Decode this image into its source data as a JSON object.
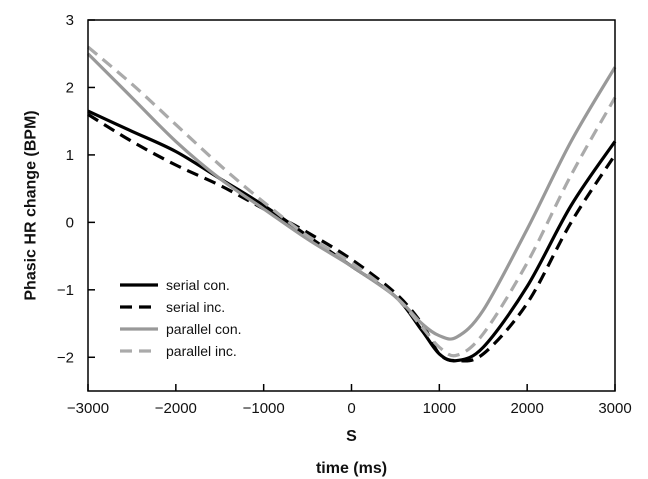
{
  "chart_data": {
    "type": "line",
    "title": "",
    "xlabel": "time (ms)",
    "xmarker": "S",
    "ylabel": "Phasic HR change (BPM)",
    "xlim": [
      -3000,
      3000
    ],
    "ylim": [
      -2.5,
      3
    ],
    "xticks": [
      -3000,
      -2000,
      -1000,
      0,
      1000,
      2000,
      3000
    ],
    "xtick_labels": [
      "−3000",
      "−2000",
      "−1000",
      "0",
      "1000",
      "2000",
      "3000"
    ],
    "yticks": [
      -2,
      -1,
      0,
      1,
      2,
      3
    ],
    "ytick_labels": [
      "−2",
      "−1",
      "0",
      "1",
      "2",
      "3"
    ],
    "grid": false,
    "legend_position": "bottom-left",
    "series": [
      {
        "name": "serial con.",
        "color": "#000000",
        "dash": "solid",
        "x": [
          -3000,
          -2500,
          -2000,
          -1500,
          -1000,
          -500,
          0,
          500,
          800,
          1000,
          1200,
          1500,
          2000,
          2500,
          3000
        ],
        "y": [
          1.65,
          1.35,
          1.05,
          0.65,
          0.25,
          -0.2,
          -0.65,
          -1.1,
          -1.6,
          -1.95,
          -2.05,
          -1.85,
          -0.95,
          0.25,
          1.2
        ]
      },
      {
        "name": "serial inc.",
        "color": "#000000",
        "dash": "dashed",
        "x": [
          -3000,
          -2500,
          -2000,
          -1500,
          -1000,
          -500,
          0,
          500,
          800,
          1000,
          1200,
          1500,
          2000,
          2500,
          3000
        ],
        "y": [
          1.6,
          1.2,
          0.85,
          0.55,
          0.2,
          -0.15,
          -0.55,
          -1.05,
          -1.5,
          -1.95,
          -2.05,
          -1.95,
          -1.2,
          0.0,
          1.0
        ]
      },
      {
        "name": "parallel con.",
        "color": "#999999",
        "dash": "solid",
        "x": [
          -3000,
          -2500,
          -2000,
          -1500,
          -1000,
          -500,
          0,
          500,
          800,
          1000,
          1200,
          1500,
          2000,
          2500,
          3000
        ],
        "y": [
          2.5,
          1.85,
          1.2,
          0.65,
          0.2,
          -0.25,
          -0.65,
          -1.1,
          -1.5,
          -1.68,
          -1.7,
          -1.3,
          -0.1,
          1.2,
          2.3
        ]
      },
      {
        "name": "parallel inc.",
        "color": "#aaaaaa",
        "dash": "dashed",
        "x": [
          -3000,
          -2500,
          -2000,
          -1500,
          -1000,
          -500,
          0,
          500,
          800,
          1000,
          1200,
          1500,
          2000,
          2500,
          3000
        ],
        "y": [
          2.6,
          2.05,
          1.45,
          0.85,
          0.3,
          -0.2,
          -0.6,
          -1.1,
          -1.55,
          -1.85,
          -1.97,
          -1.65,
          -0.6,
          0.7,
          1.85
        ]
      }
    ]
  }
}
